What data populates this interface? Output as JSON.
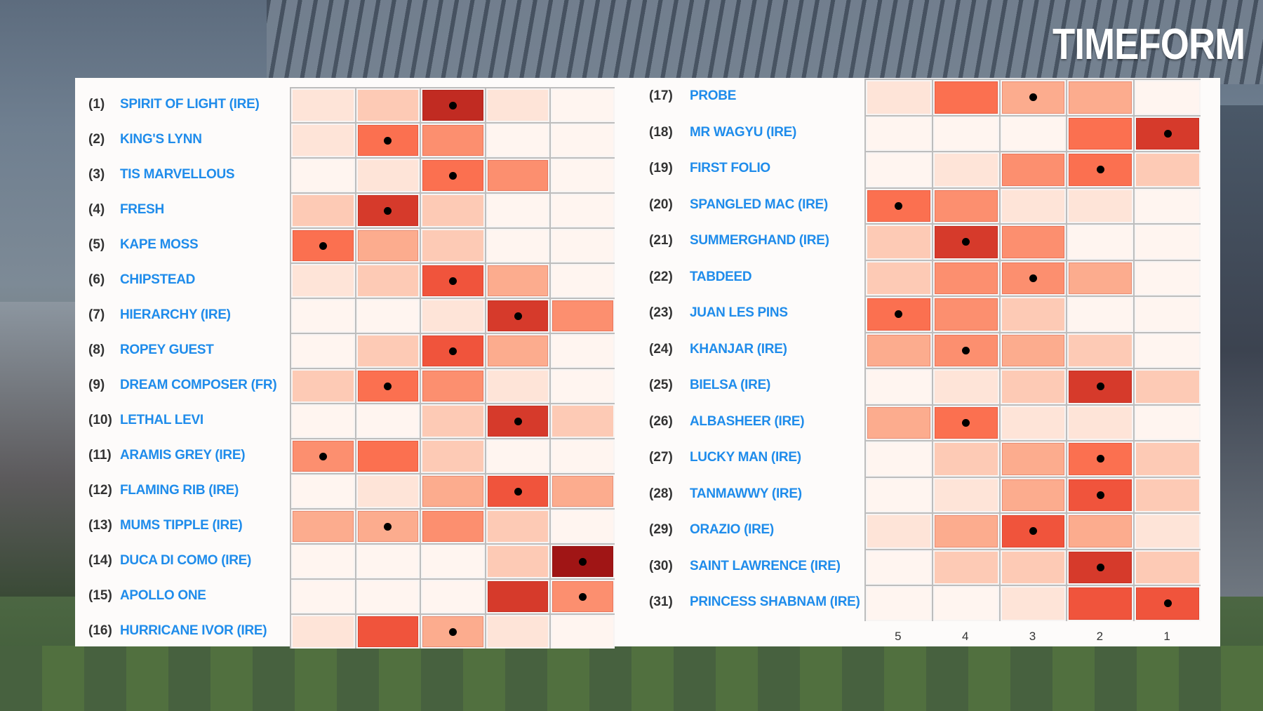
{
  "brand": {
    "logo_text": "TIMEFORM"
  },
  "colors": {
    "name_text": "#1f8ceb",
    "scale": [
      "#fff5f0",
      "#fee4d8",
      "#fdcab5",
      "#fcac8e",
      "#fc8f6f",
      "#fb7050",
      "#f0543c",
      "#d63a2b",
      "#c12b22",
      "#a01515"
    ],
    "dot": "#000000"
  },
  "chart_data": {
    "type": "heatmap",
    "x_tick_labels": [
      "5",
      "4",
      "3",
      "2",
      "1"
    ],
    "value_scale": "intensity level 0 (lightest) to 9 (darkest)",
    "panels": [
      {
        "rows": [
          {
            "rank": "(1)",
            "name": "SPIRIT OF LIGHT (IRE)",
            "values": [
              1,
              2,
              8,
              1,
              0
            ],
            "dot": "3"
          },
          {
            "rank": "(2)",
            "name": "KING'S LYNN",
            "values": [
              1,
              5,
              4,
              0,
              0
            ],
            "dot": "4"
          },
          {
            "rank": "(3)",
            "name": "TIS MARVELLOUS",
            "values": [
              0,
              1,
              5,
              4,
              0
            ],
            "dot": "3"
          },
          {
            "rank": "(4)",
            "name": "FRESH",
            "values": [
              2,
              7,
              2,
              0,
              0
            ],
            "dot": "4"
          },
          {
            "rank": "(5)",
            "name": "KAPE MOSS",
            "values": [
              5,
              3,
              2,
              0,
              0
            ],
            "dot": "5"
          },
          {
            "rank": "(6)",
            "name": "CHIPSTEAD",
            "values": [
              1,
              2,
              6,
              3,
              0
            ],
            "dot": "3"
          },
          {
            "rank": "(7)",
            "name": "HIERARCHY (IRE)",
            "values": [
              0,
              0,
              1,
              7,
              4
            ],
            "dot": "2"
          },
          {
            "rank": "(8)",
            "name": "ROPEY GUEST",
            "values": [
              0,
              2,
              6,
              3,
              0
            ],
            "dot": "3"
          },
          {
            "rank": "(9)",
            "name": "DREAM COMPOSER (FR)",
            "values": [
              2,
              5,
              4,
              1,
              0
            ],
            "dot": "4"
          },
          {
            "rank": "(10)",
            "name": "LETHAL LEVI",
            "values": [
              0,
              0,
              2,
              7,
              2
            ],
            "dot": "2"
          },
          {
            "rank": "(11)",
            "name": "ARAMIS GREY (IRE)",
            "values": [
              4,
              5,
              2,
              0,
              0
            ],
            "dot": "5"
          },
          {
            "rank": "(12)",
            "name": "FLAMING RIB (IRE)",
            "values": [
              0,
              1,
              3,
              6,
              3
            ],
            "dot": "2"
          },
          {
            "rank": "(13)",
            "name": "MUMS TIPPLE (IRE)",
            "values": [
              3,
              3,
              4,
              2,
              0
            ],
            "dot": "4"
          },
          {
            "rank": "(14)",
            "name": "DUCA DI COMO (IRE)",
            "values": [
              0,
              0,
              0,
              2,
              9
            ],
            "dot": "1"
          },
          {
            "rank": "(15)",
            "name": "APOLLO ONE",
            "values": [
              0,
              0,
              0,
              7,
              4
            ],
            "dot": "1"
          },
          {
            "rank": "(16)",
            "name": "HURRICANE IVOR (IRE)",
            "values": [
              1,
              6,
              3,
              1,
              0
            ],
            "dot": "3"
          }
        ]
      },
      {
        "rows": [
          {
            "rank": "(17)",
            "name": "PROBE",
            "values": [
              1,
              5,
              3,
              3,
              0
            ],
            "dot": "3"
          },
          {
            "rank": "(18)",
            "name": "MR WAGYU (IRE)",
            "values": [
              0,
              0,
              0,
              5,
              7
            ],
            "dot": "1"
          },
          {
            "rank": "(19)",
            "name": "FIRST FOLIO",
            "values": [
              0,
              1,
              4,
              5,
              2
            ],
            "dot": "2"
          },
          {
            "rank": "(20)",
            "name": "SPANGLED MAC (IRE)",
            "values": [
              5,
              4,
              1,
              1,
              0
            ],
            "dot": "5"
          },
          {
            "rank": "(21)",
            "name": "SUMMERGHAND (IRE)",
            "values": [
              2,
              7,
              4,
              0,
              0
            ],
            "dot": "4"
          },
          {
            "rank": "(22)",
            "name": "TABDEED",
            "values": [
              2,
              4,
              4,
              3,
              0
            ],
            "dot": "3"
          },
          {
            "rank": "(23)",
            "name": "JUAN LES PINS",
            "values": [
              5,
              4,
              2,
              0,
              0
            ],
            "dot": "5"
          },
          {
            "rank": "(24)",
            "name": "KHANJAR (IRE)",
            "values": [
              3,
              4,
              3,
              2,
              0
            ],
            "dot": "4"
          },
          {
            "rank": "(25)",
            "name": "BIELSA (IRE)",
            "values": [
              0,
              1,
              2,
              7,
              2
            ],
            "dot": "2"
          },
          {
            "rank": "(26)",
            "name": "ALBASHEER (IRE)",
            "values": [
              3,
              5,
              1,
              1,
              0
            ],
            "dot": "4"
          },
          {
            "rank": "(27)",
            "name": "LUCKY MAN (IRE)",
            "values": [
              0,
              2,
              3,
              5,
              2
            ],
            "dot": "2"
          },
          {
            "rank": "(28)",
            "name": "TANMAWWY (IRE)",
            "values": [
              0,
              1,
              3,
              6,
              2
            ],
            "dot": "2"
          },
          {
            "rank": "(29)",
            "name": "ORAZIO (IRE)",
            "values": [
              1,
              3,
              6,
              3,
              1
            ],
            "dot": "3"
          },
          {
            "rank": "(30)",
            "name": "SAINT LAWRENCE (IRE)",
            "values": [
              0,
              2,
              2,
              7,
              2
            ],
            "dot": "2"
          },
          {
            "rank": "(31)",
            "name": "PRINCESS SHABNAM (IRE)",
            "values": [
              0,
              0,
              1,
              6,
              6
            ],
            "dot": "1"
          }
        ]
      }
    ]
  }
}
